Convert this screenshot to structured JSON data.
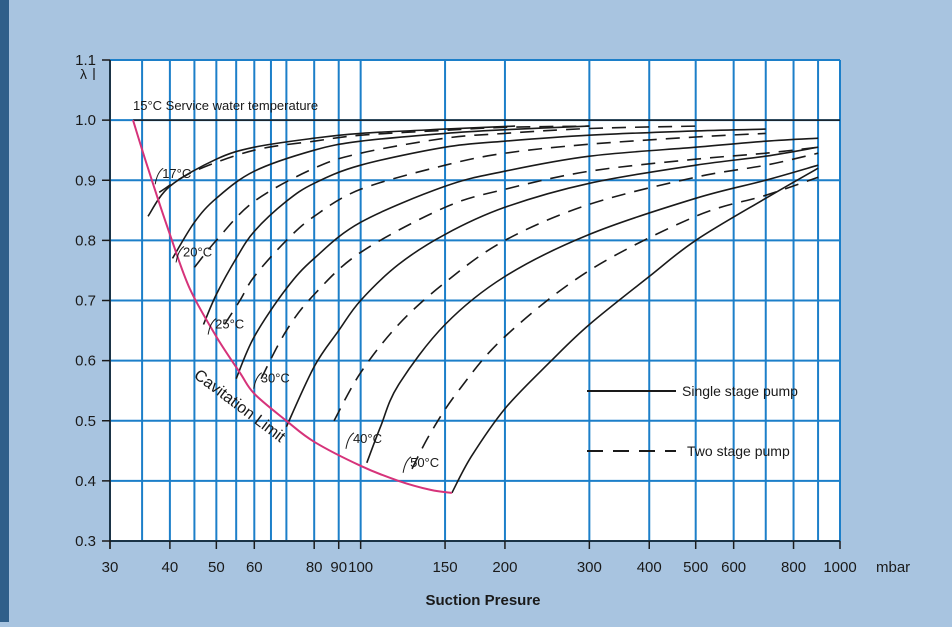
{
  "chart_data": {
    "type": "line",
    "y_axis_symbol": "λ",
    "xlabel": "Suction Presure",
    "x_unit": "mbar",
    "x_scale": "log",
    "xlim": [
      30,
      1000
    ],
    "ylim": [
      0.3,
      1.1
    ],
    "grid": true,
    "x_ticks": [
      30,
      40,
      50,
      60,
      80,
      90,
      100,
      150,
      200,
      300,
      400,
      500,
      600,
      800,
      1000
    ],
    "x_grid_extra": [
      35,
      45,
      55,
      65,
      70,
      700,
      900
    ],
    "x_tick_labels": [
      "30",
      "40",
      "50",
      "60",
      "80",
      "90",
      "100",
      "150",
      "200",
      "300",
      "400",
      "500",
      "600",
      "800",
      "1000"
    ],
    "y_ticks": [
      0.3,
      0.4,
      0.5,
      0.6,
      0.7,
      0.8,
      0.9,
      1.0,
      1.1
    ],
    "y_tick_labels": [
      "0.3",
      "0.4",
      "0.5",
      "0.6",
      "0.7",
      "0.8",
      "0.9",
      "1.0",
      "1.1"
    ],
    "top_line_label": "15°C Service water temperature",
    "cavitation_label": "Cavitation Limit",
    "legend": {
      "placement": "right",
      "entries": [
        {
          "label": "Single stage pump",
          "style": "solid"
        },
        {
          "label": "Two stage pump",
          "style": "dashed"
        }
      ]
    },
    "temperature_labels": [
      {
        "text": "17°C",
        "x": 38,
        "y": 0.91
      },
      {
        "text": "20°C",
        "x": 42,
        "y": 0.78
      },
      {
        "text": "25°C",
        "x": 49,
        "y": 0.66
      },
      {
        "text": "30°C",
        "x": 61,
        "y": 0.57
      },
      {
        "text": "40°C",
        "x": 95,
        "y": 0.47
      },
      {
        "text": "50°C",
        "x": 125,
        "y": 0.43
      }
    ],
    "cavitation_limit": {
      "x": [
        33.5,
        36,
        40,
        44,
        50,
        56,
        60,
        70,
        80,
        100,
        120,
        140,
        155
      ],
      "y": [
        1.0,
        0.92,
        0.81,
        0.72,
        0.64,
        0.58,
        0.545,
        0.5,
        0.465,
        0.425,
        0.4,
        0.385,
        0.38
      ]
    },
    "series": [
      {
        "style": "solid",
        "x": [
          36,
          40,
          50,
          60,
          80,
          100,
          150,
          210
        ],
        "y": [
          0.84,
          0.89,
          0.935,
          0.955,
          0.97,
          0.978,
          0.985,
          0.99
        ]
      },
      {
        "style": "dashed",
        "x": [
          38,
          45,
          60,
          80,
          100,
          150,
          200,
          300
        ],
        "y": [
          0.88,
          0.915,
          0.95,
          0.965,
          0.975,
          0.983,
          0.988,
          0.99
        ]
      },
      {
        "style": "solid",
        "x": [
          40.5,
          45,
          50,
          60,
          80,
          100,
          150,
          200,
          300
        ],
        "y": [
          0.77,
          0.83,
          0.87,
          0.915,
          0.95,
          0.965,
          0.978,
          0.984,
          0.99
        ]
      },
      {
        "style": "dashed",
        "x": [
          45,
          50,
          60,
          80,
          100,
          150,
          200,
          300,
          500
        ],
        "y": [
          0.755,
          0.8,
          0.865,
          0.92,
          0.945,
          0.97,
          0.978,
          0.986,
          0.99
        ]
      },
      {
        "style": "solid",
        "x": [
          47,
          50,
          55,
          60,
          70,
          80,
          100,
          150,
          200,
          300,
          500,
          700
        ],
        "y": [
          0.66,
          0.71,
          0.77,
          0.815,
          0.865,
          0.895,
          0.925,
          0.955,
          0.965,
          0.975,
          0.982,
          0.985
        ]
      },
      {
        "style": "dashed",
        "x": [
          52,
          56,
          60,
          70,
          80,
          100,
          150,
          200,
          300,
          500,
          700
        ],
        "y": [
          0.66,
          0.7,
          0.74,
          0.8,
          0.84,
          0.885,
          0.925,
          0.945,
          0.96,
          0.972,
          0.978
        ]
      },
      {
        "style": "solid",
        "x": [
          55,
          60,
          70,
          80,
          100,
          150,
          200,
          300,
          500,
          700,
          900
        ],
        "y": [
          0.57,
          0.64,
          0.72,
          0.77,
          0.83,
          0.89,
          0.915,
          0.94,
          0.955,
          0.965,
          0.97
        ]
      },
      {
        "style": "dashed",
        "x": [
          62,
          70,
          80,
          100,
          150,
          200,
          300,
          500,
          700,
          900
        ],
        "y": [
          0.57,
          0.65,
          0.71,
          0.78,
          0.855,
          0.885,
          0.915,
          0.935,
          0.945,
          0.955
        ]
      },
      {
        "style": "solid",
        "x": [
          70,
          80,
          90,
          100,
          120,
          150,
          200,
          300,
          500,
          700,
          900
        ],
        "y": [
          0.49,
          0.59,
          0.65,
          0.7,
          0.76,
          0.81,
          0.855,
          0.895,
          0.925,
          0.94,
          0.955
        ]
      },
      {
        "style": "dashed",
        "x": [
          88,
          100,
          120,
          150,
          200,
          300,
          500,
          700,
          900
        ],
        "y": [
          0.5,
          0.58,
          0.66,
          0.73,
          0.8,
          0.86,
          0.905,
          0.925,
          0.945
        ]
      },
      {
        "style": "solid",
        "x": [
          103,
          110,
          120,
          150,
          200,
          300,
          500,
          700,
          900
        ],
        "y": [
          0.43,
          0.49,
          0.56,
          0.66,
          0.74,
          0.81,
          0.87,
          0.9,
          0.925
        ]
      },
      {
        "style": "dashed",
        "x": [
          128,
          140,
          160,
          200,
          300,
          500,
          700,
          900
        ],
        "y": [
          0.42,
          0.48,
          0.55,
          0.64,
          0.75,
          0.84,
          0.875,
          0.905
        ]
      },
      {
        "style": "solid",
        "x": [
          155,
          170,
          200,
          250,
          300,
          400,
          500,
          700,
          900
        ],
        "y": [
          0.38,
          0.44,
          0.52,
          0.6,
          0.66,
          0.74,
          0.8,
          0.87,
          0.92
        ]
      }
    ]
  }
}
